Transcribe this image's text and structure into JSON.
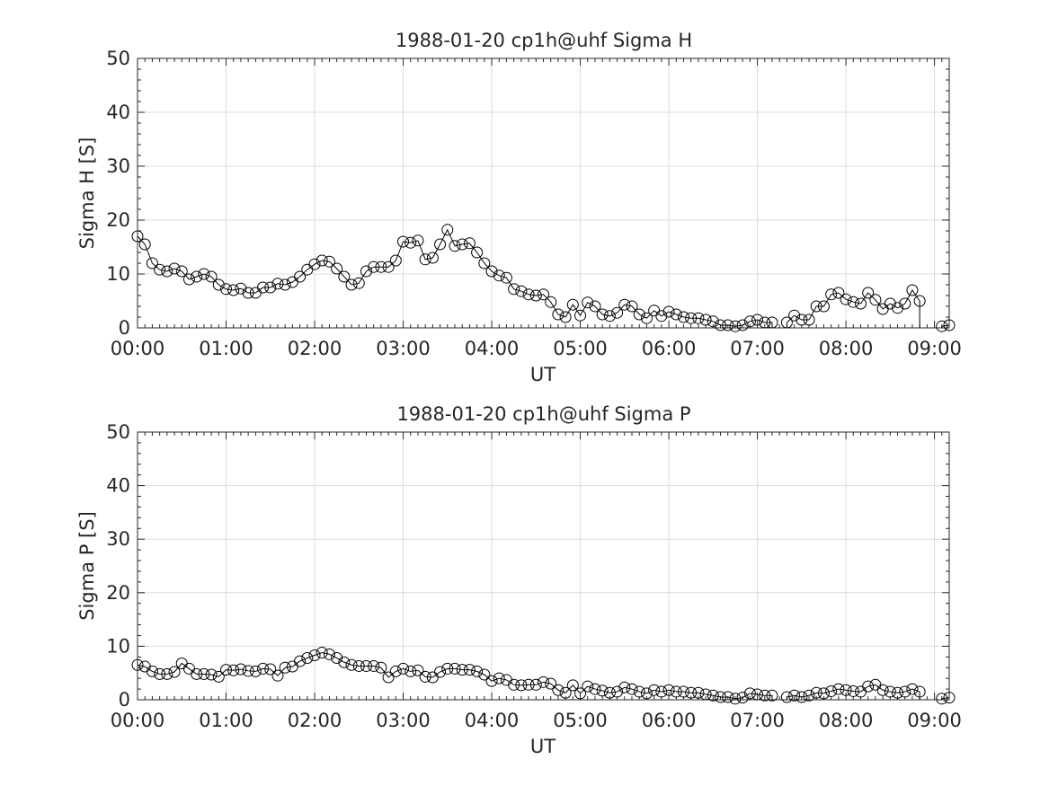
{
  "chart_data": [
    {
      "type": "line",
      "title": "1988-01-20  cp1h@uhf Sigma H",
      "xlabel": "UT",
      "ylabel": "Sigma H [S]",
      "xlim_minutes": [
        0,
        550
      ],
      "ylim": [
        0,
        50
      ],
      "grid": true,
      "x_tick_labels": [
        "00:00",
        "01:00",
        "02:00",
        "03:00",
        "04:00",
        "05:00",
        "06:00",
        "07:00",
        "08:00",
        "09:00"
      ],
      "y_tick_labels": [
        "0",
        "10",
        "20",
        "30",
        "40",
        "50"
      ],
      "series": [
        {
          "x": [
            0,
            5,
            10,
            15,
            20,
            25,
            30,
            35,
            40,
            45,
            50,
            55,
            60,
            65,
            70,
            75,
            80,
            85,
            90,
            95,
            100,
            105,
            110,
            115,
            120,
            125,
            130,
            135,
            140,
            145,
            150,
            155,
            160,
            165,
            170,
            175,
            180,
            185,
            190,
            195,
            200,
            205,
            210,
            215,
            220,
            225,
            230,
            235,
            240,
            245,
            250,
            255,
            260,
            265,
            270,
            275,
            280,
            285,
            290,
            295,
            300,
            305,
            310,
            315,
            320,
            325,
            330,
            335,
            340,
            345,
            350,
            355,
            360,
            365,
            370,
            375,
            380,
            385,
            390,
            395,
            400,
            405,
            410,
            415,
            420,
            425,
            430,
            440,
            445,
            450,
            455,
            460,
            465,
            470,
            475,
            480,
            485,
            490,
            495,
            500,
            505,
            510,
            515,
            520,
            525,
            530,
            545,
            550
          ],
          "values": [
            17,
            15.5,
            12,
            10.8,
            10.5,
            11,
            10.5,
            9,
            9.5,
            10,
            9.5,
            8,
            7.2,
            7,
            7.3,
            6.5,
            6.5,
            7.5,
            7.5,
            8.2,
            8,
            8.5,
            9.5,
            10.8,
            11.8,
            12.5,
            12.3,
            11,
            9.5,
            8,
            8.3,
            10.5,
            11.3,
            11.3,
            11.3,
            12.5,
            16,
            15.8,
            16.2,
            12.7,
            13,
            15.5,
            18.2,
            15.2,
            15.5,
            15.7,
            14,
            12,
            10.5,
            9.7,
            9.3,
            7.2,
            6.8,
            6.2,
            6,
            6.2,
            4.8,
            2.5,
            2,
            4.3,
            2.3,
            4.7,
            4,
            2.5,
            2.2,
            2.8,
            4.3,
            4,
            2.5,
            1.8,
            3.2,
            2.2,
            3,
            2.5,
            2,
            1.8,
            1.8,
            1.5,
            1.2,
            0.5,
            0.5,
            0.3,
            0.5,
            1.2,
            1.5,
            1,
            1,
            1,
            2.3,
            1.5,
            1.5,
            4,
            4,
            6.2,
            6.5,
            5.3,
            4.8,
            4.5,
            6.5,
            5.2,
            3.5,
            4.5,
            3.7,
            4.5,
            7,
            5,
            0.3,
            0.5
          ]
        }
      ]
    },
    {
      "type": "line",
      "title": "1988-01-20  cp1h@uhf Sigma P",
      "xlabel": "UT",
      "ylabel": "Sigma P [S]",
      "xlim_minutes": [
        0,
        550
      ],
      "ylim": [
        0,
        50
      ],
      "grid": true,
      "x_tick_labels": [
        "00:00",
        "01:00",
        "02:00",
        "03:00",
        "04:00",
        "05:00",
        "06:00",
        "07:00",
        "08:00",
        "09:00"
      ],
      "y_tick_labels": [
        "0",
        "10",
        "20",
        "30",
        "40",
        "50"
      ],
      "series": [
        {
          "x": [
            0,
            5,
            10,
            15,
            20,
            25,
            30,
            35,
            40,
            45,
            50,
            55,
            60,
            65,
            70,
            75,
            80,
            85,
            90,
            95,
            100,
            105,
            110,
            115,
            120,
            125,
            130,
            135,
            140,
            145,
            150,
            155,
            160,
            165,
            170,
            175,
            180,
            185,
            190,
            195,
            200,
            205,
            210,
            215,
            220,
            225,
            230,
            235,
            240,
            245,
            250,
            255,
            260,
            265,
            270,
            275,
            280,
            285,
            290,
            295,
            300,
            305,
            310,
            315,
            320,
            325,
            330,
            335,
            340,
            345,
            350,
            355,
            360,
            365,
            370,
            375,
            380,
            385,
            390,
            395,
            400,
            405,
            410,
            415,
            420,
            425,
            430,
            440,
            445,
            450,
            455,
            460,
            465,
            470,
            475,
            480,
            485,
            490,
            495,
            500,
            505,
            510,
            515,
            520,
            525,
            530,
            545,
            550
          ],
          "values": [
            6.5,
            6.2,
            5.3,
            4.8,
            4.8,
            5.2,
            6.8,
            5.8,
            4.8,
            4.8,
            4.7,
            4.3,
            5.6,
            5.5,
            5.7,
            5.4,
            5.3,
            5.8,
            5.7,
            4.5,
            6,
            6.2,
            7.2,
            7.8,
            8.3,
            8.8,
            8.5,
            7.8,
            7,
            6.5,
            6.3,
            6.3,
            6.3,
            6,
            4.2,
            5.3,
            5.8,
            5.3,
            5.5,
            4.3,
            4.2,
            5.2,
            5.8,
            5.8,
            5.6,
            5.6,
            5.3,
            4.7,
            3.5,
            4,
            3.7,
            2.8,
            2.7,
            2.8,
            2.8,
            3.3,
            3,
            1.8,
            1.3,
            2.7,
            1.2,
            2.5,
            2,
            1.7,
            1.3,
            1.5,
            2.3,
            2,
            1.5,
            1.2,
            1.8,
            1.5,
            1.8,
            1.5,
            1.5,
            1.3,
            1.3,
            1,
            0.8,
            0.5,
            0.5,
            0.2,
            0.4,
            1.2,
            1,
            0.8,
            0.8,
            0.5,
            0.8,
            0.5,
            0.8,
            1.3,
            1.2,
            1.6,
            2,
            1.8,
            1.6,
            1.5,
            2.5,
            2.8,
            1.8,
            1.5,
            1.3,
            1.5,
            2,
            1.5,
            0.2,
            0.4
          ]
        }
      ]
    }
  ]
}
